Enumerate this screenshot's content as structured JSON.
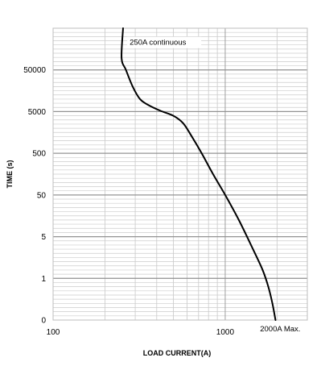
{
  "chart_data": {
    "type": "line",
    "xlabel": "LOAD CURRENT(A)",
    "ylabel": "TIME (s)",
    "x_scale": "log",
    "y_scale": "categorical-log",
    "x_ticks": [
      {
        "value": 100,
        "label": "100"
      },
      {
        "value": 1000,
        "label": "1000"
      }
    ],
    "x_range": [
      100,
      3000
    ],
    "y_ticks": [
      "0",
      "1",
      "5",
      "50",
      "500",
      "5000",
      "50000"
    ],
    "y_range": [
      0,
      7
    ],
    "grid": true,
    "annotations": [
      {
        "text": "250A continuous",
        "x": 250,
        "y": 6.6
      },
      {
        "text": "2000A Max.",
        "x": 2000,
        "y": 0
      }
    ],
    "series": [
      {
        "points": [
          {
            "x": 255,
            "y": 7.0
          },
          {
            "x": 250,
            "y": 6.28
          },
          {
            "x": 265,
            "y": 6.0
          },
          {
            "x": 290,
            "y": 5.6
          },
          {
            "x": 320,
            "y": 5.3
          },
          {
            "x": 360,
            "y": 5.15
          },
          {
            "x": 420,
            "y": 5.02
          },
          {
            "x": 500,
            "y": 4.9
          },
          {
            "x": 570,
            "y": 4.72
          },
          {
            "x": 640,
            "y": 4.4
          },
          {
            "x": 730,
            "y": 4.0
          },
          {
            "x": 850,
            "y": 3.5
          },
          {
            "x": 1000,
            "y": 3.0
          },
          {
            "x": 1200,
            "y": 2.4
          },
          {
            "x": 1450,
            "y": 1.7
          },
          {
            "x": 1650,
            "y": 1.2
          },
          {
            "x": 1780,
            "y": 0.8
          },
          {
            "x": 1880,
            "y": 0.4
          },
          {
            "x": 1960,
            "y": 0.0
          }
        ]
      }
    ]
  }
}
